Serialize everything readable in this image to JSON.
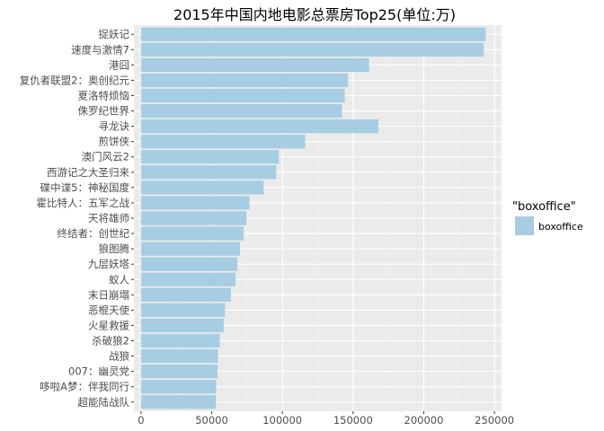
{
  "chart_data": {
    "type": "bar",
    "orientation": "horizontal",
    "title": "2015年中国内地电影总票房Top25(单位:万)",
    "xlabel": "",
    "ylabel": "",
    "xlim": [
      -5000,
      255000
    ],
    "xticks": [
      0,
      50000,
      100000,
      150000,
      200000,
      250000
    ],
    "xtick_labels": [
      "0",
      "50000",
      "100000",
      "150000",
      "200000",
      "250000"
    ],
    "categories": [
      "捉妖记",
      "速度与激情7",
      "港囧",
      "复仇者联盟2：奥创纪元",
      "夏洛特烦恼",
      "侏罗纪世界",
      "寻龙诀",
      "煎饼侠",
      "澳门风云2",
      "西游记之大圣归来",
      "碟中谍5：神秘国度",
      "霍比特人：五军之战",
      "天将雄师",
      "终结者：创世纪",
      "狼图腾",
      "九层妖塔",
      "蚁人",
      "末日崩塌",
      "恶棍天使",
      "火星救援",
      "杀破狼2",
      "战狼",
      "007：幽灵党",
      "哆啦A梦：伴我同行",
      "超能陆战队"
    ],
    "series": [
      {
        "name": "boxoffice",
        "values": [
          243800,
          242400,
          161300,
          146500,
          144100,
          142100,
          167900,
          116100,
          97500,
          95600,
          86800,
          76700,
          74600,
          72600,
          70000,
          68200,
          66800,
          63600,
          59400,
          58500,
          55800,
          54500,
          54100,
          53100,
          53000
        ]
      }
    ],
    "legend": {
      "title": "\"boxoffice\"",
      "position": "right",
      "items": [
        "boxoffice"
      ]
    },
    "grid": true,
    "colors": {
      "bar": "#a7cde2",
      "panel": "#ebebeb",
      "grid_major": "#ffffff",
      "grid_minor": "#f5f5f5"
    }
  }
}
